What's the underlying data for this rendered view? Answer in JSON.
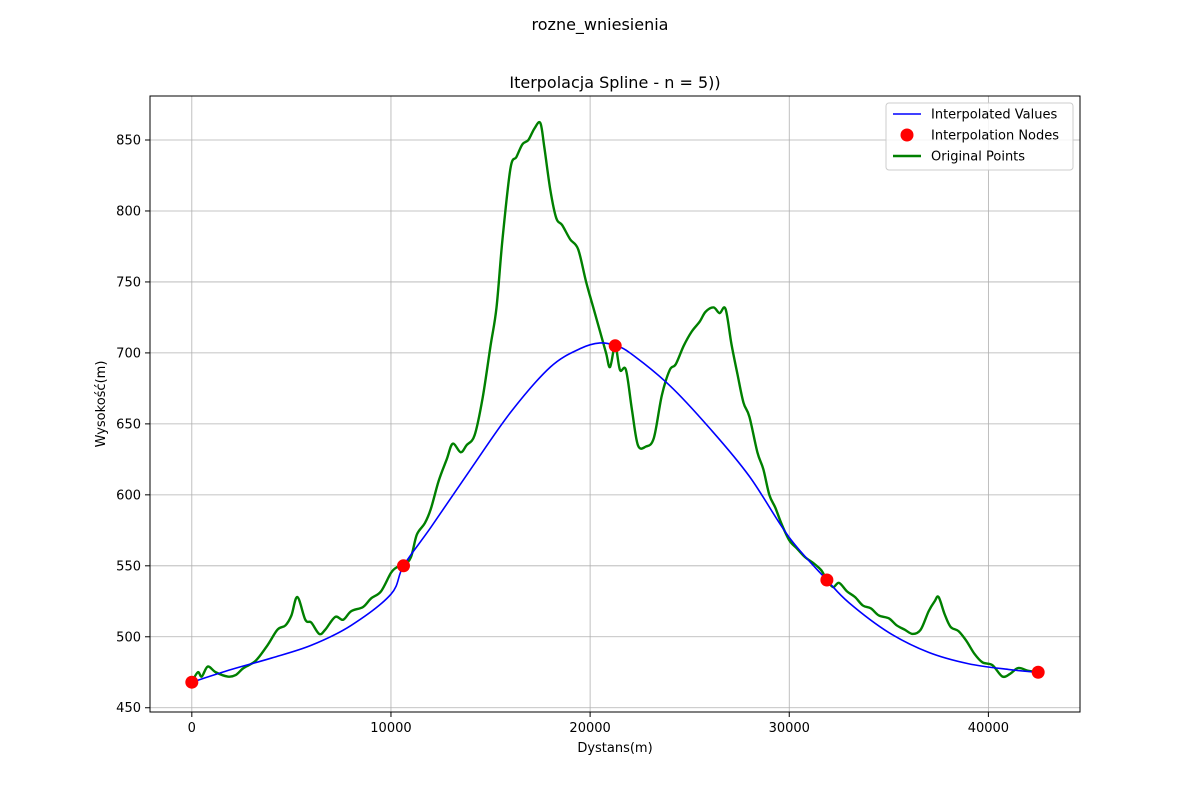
{
  "suptitle": "rozne_wniesienia",
  "chart_data": {
    "type": "line",
    "title": "Iterpolacja Spline - n = 5))",
    "xlabel": "Dystans(m)",
    "ylabel": "Wysokość(m)",
    "xlim": [
      -2100,
      44600
    ],
    "ylim": [
      447,
      881
    ],
    "xticks": [
      0,
      10000,
      20000,
      30000,
      40000
    ],
    "yticks": [
      450,
      500,
      550,
      600,
      650,
      700,
      750,
      800,
      850
    ],
    "grid": true,
    "legend_position": "top-right",
    "series": [
      {
        "name": "Interpolated Values",
        "kind": "line",
        "color": "#0000ff",
        "x": [
          0,
          2000,
          4000,
          6000,
          8000,
          10000,
          10630,
          12000,
          14000,
          16000,
          18000,
          19500,
          20500,
          21260,
          22000,
          24000,
          26000,
          28000,
          30000,
          31890,
          33000,
          35000,
          37000,
          39000,
          41000,
          42500
        ],
        "y": [
          468,
          477,
          485,
          494,
          508,
          530,
          550,
          577,
          618,
          658,
          690,
          703,
          707,
          705,
          700,
          677,
          647,
          613,
          570,
          540,
          524,
          503,
          489,
          481,
          477,
          475
        ]
      },
      {
        "name": "Interpolation Nodes",
        "kind": "scatter",
        "color": "#ff0000",
        "x": [
          0,
          10630,
          21260,
          31890,
          42500
        ],
        "y": [
          468,
          550,
          705,
          540,
          475
        ]
      },
      {
        "name": "Original Points",
        "kind": "line",
        "color": "#008000",
        "x": [
          0,
          300,
          500,
          800,
          1200,
          1800,
          2200,
          2600,
          3200,
          3800,
          4300,
          4700,
          5000,
          5300,
          5700,
          6000,
          6400,
          6700,
          7200,
          7600,
          8000,
          8600,
          9000,
          9500,
          10000,
          10300,
          10630,
          11000,
          11300,
          11700,
          12000,
          12400,
          12800,
          13100,
          13500,
          13800,
          14200,
          14600,
          15000,
          15300,
          15600,
          16000,
          16300,
          16600,
          16900,
          17200,
          17500,
          17700,
          18000,
          18300,
          18600,
          19000,
          19400,
          19800,
          20200,
          20500,
          20800,
          21000,
          21260,
          21500,
          21800,
          22100,
          22400,
          22800,
          23200,
          23600,
          24000,
          24300,
          24700,
          25100,
          25500,
          25800,
          26200,
          26500,
          26800,
          27100,
          27400,
          27700,
          28000,
          28400,
          28700,
          29000,
          29300,
          29600,
          30000,
          30400,
          30800,
          31200,
          31600,
          31890,
          32200,
          32500,
          32900,
          33300,
          33700,
          34100,
          34500,
          35000,
          35400,
          35800,
          36200,
          36600,
          37000,
          37300,
          37500,
          37800,
          38100,
          38500,
          38900,
          39300,
          39700,
          40200,
          40700,
          41100,
          41500,
          42000,
          42500
        ],
        "y": [
          468,
          475,
          472,
          479,
          475,
          472,
          473,
          478,
          483,
          494,
          505,
          508,
          515,
          528,
          512,
          510,
          502,
          505,
          514,
          512,
          518,
          521,
          527,
          532,
          545,
          549,
          550,
          556,
          572,
          580,
          590,
          610,
          625,
          636,
          630,
          635,
          642,
          668,
          705,
          732,
          780,
          830,
          838,
          847,
          850,
          858,
          862,
          845,
          815,
          795,
          790,
          780,
          773,
          750,
          730,
          715,
          700,
          690,
          705,
          688,
          688,
          660,
          635,
          634,
          640,
          670,
          688,
          692,
          705,
          715,
          722,
          729,
          732,
          728,
          731,
          706,
          685,
          665,
          655,
          630,
          618,
          600,
          591,
          580,
          568,
          562,
          556,
          552,
          547,
          540,
          535,
          538,
          532,
          528,
          522,
          520,
          515,
          513,
          508,
          505,
          502,
          505,
          518,
          525,
          528,
          516,
          507,
          504,
          497,
          488,
          482,
          480,
          472,
          474,
          478,
          476,
          475
        ]
      }
    ]
  }
}
